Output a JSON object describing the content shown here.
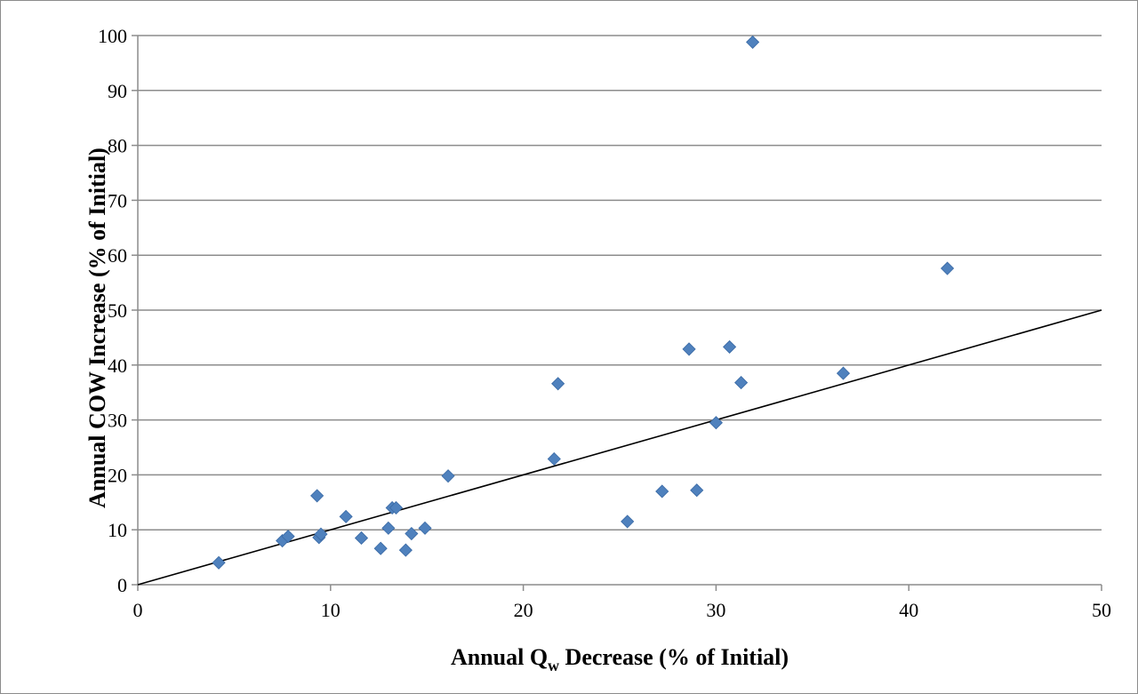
{
  "chart_data": {
    "type": "scatter",
    "title": "",
    "xlabel": "Annual Q",
    "xlabel_sub": "w",
    "xlabel_rest": " Decrease (% of Initial)",
    "ylabel": "Annual COW Increase (% of Initial)",
    "xlim": [
      0,
      50
    ],
    "ylim": [
      0,
      100
    ],
    "x_ticks": [
      "0",
      "10",
      "20",
      "30",
      "40",
      "50"
    ],
    "y_ticks": [
      "0",
      "10",
      "20",
      "30",
      "40",
      "50",
      "60",
      "70",
      "80",
      "90",
      "100"
    ],
    "grid": "horizontal",
    "legend": "none",
    "marker": "diamond",
    "marker_color": "#4f81bd",
    "line_color": "#000000",
    "grid_color": "#8c8c8c",
    "reference_line": {
      "x": [
        0,
        50
      ],
      "y": [
        0,
        50
      ]
    },
    "points": [
      {
        "x": 4.2,
        "y": 4.0
      },
      {
        "x": 7.5,
        "y": 8.0
      },
      {
        "x": 7.8,
        "y": 8.8
      },
      {
        "x": 9.3,
        "y": 16.2
      },
      {
        "x": 9.4,
        "y": 8.6
      },
      {
        "x": 9.5,
        "y": 9.2
      },
      {
        "x": 10.8,
        "y": 12.4
      },
      {
        "x": 11.6,
        "y": 8.5
      },
      {
        "x": 12.6,
        "y": 6.6
      },
      {
        "x": 13.0,
        "y": 10.3
      },
      {
        "x": 13.2,
        "y": 14.0
      },
      {
        "x": 13.4,
        "y": 14.0
      },
      {
        "x": 13.9,
        "y": 6.3
      },
      {
        "x": 14.2,
        "y": 9.3
      },
      {
        "x": 14.9,
        "y": 10.3
      },
      {
        "x": 16.1,
        "y": 19.8
      },
      {
        "x": 21.6,
        "y": 22.9
      },
      {
        "x": 21.8,
        "y": 36.6
      },
      {
        "x": 25.4,
        "y": 11.5
      },
      {
        "x": 27.2,
        "y": 17.0
      },
      {
        "x": 28.6,
        "y": 42.9
      },
      {
        "x": 29.0,
        "y": 17.2
      },
      {
        "x": 30.0,
        "y": 29.5
      },
      {
        "x": 30.7,
        "y": 43.3
      },
      {
        "x": 31.3,
        "y": 36.8
      },
      {
        "x": 31.9,
        "y": 98.8
      },
      {
        "x": 36.6,
        "y": 38.5
      },
      {
        "x": 42.0,
        "y": 57.6
      }
    ]
  }
}
